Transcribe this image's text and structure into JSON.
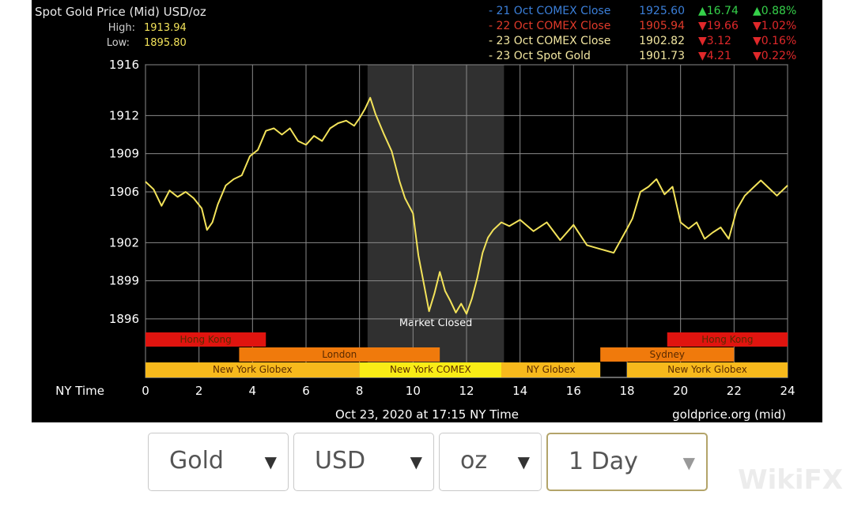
{
  "header": {
    "title": "Spot Gold Price (Mid) USD/oz",
    "high_label": "High:",
    "high_value": "1913.94",
    "low_label": "Low:",
    "low_value": "1895.80"
  },
  "quotes": [
    {
      "label": "- 21 Oct COMEX Close",
      "price": "1925.60",
      "change": "16.74",
      "pct": "0.88%",
      "up": true,
      "color": "#3b7fd9"
    },
    {
      "label": "- 22 Oct COMEX Close",
      "price": "1905.94",
      "change": "19.66",
      "pct": "1.02%",
      "up": false,
      "color": "#e03a2a"
    },
    {
      "label": "- 23 Oct COMEX Close",
      "price": "1902.82",
      "change": "3.12",
      "pct": "0.16%",
      "up": false,
      "color": "#f2e6a0"
    },
    {
      "label": "- 23 Oct Spot Gold",
      "price": "1901.73",
      "change": "4.21",
      "pct": "0.22%",
      "up": false,
      "color": "#f2e6a0"
    }
  ],
  "chart_data": {
    "type": "line",
    "xlabel": "NY Time",
    "xlim": [
      0,
      24
    ],
    "ylim": [
      1895,
      1916
    ],
    "x_ticks": [
      0,
      2,
      4,
      6,
      8,
      10,
      12,
      14,
      16,
      18,
      20,
      22,
      24
    ],
    "y_ticks": [
      1896,
      1899,
      1902,
      1906,
      1909,
      1912,
      1916
    ],
    "grid": true,
    "line_color": "#f3e35a",
    "closed_region": {
      "start": 8.3,
      "end": 13.4,
      "label": "Market Closed"
    },
    "series": [
      {
        "x": [
          0,
          0.3,
          0.6,
          0.9,
          1.2,
          1.5,
          1.8,
          2.1,
          2.3,
          2.5,
          2.7,
          3.0,
          3.3,
          3.6,
          3.9,
          4.2,
          4.5,
          4.8,
          5.1,
          5.4,
          5.7,
          6.0,
          6.3,
          6.6,
          6.9,
          7.2,
          7.5,
          7.8,
          8.0,
          8.2,
          8.4,
          8.6,
          8.9,
          9.2,
          9.5,
          9.7,
          10.0,
          10.2,
          10.4,
          10.6,
          10.8,
          11.0,
          11.2,
          11.4,
          11.6,
          11.8,
          12.0,
          12.2,
          12.4,
          12.6,
          12.8,
          13.0,
          13.3,
          13.6,
          14.0,
          14.5,
          15.0,
          15.5,
          16.0,
          16.5,
          17.0,
          17.5,
          18.0,
          18.2,
          18.5,
          18.8,
          19.1,
          19.4,
          19.7,
          20.0,
          20.3,
          20.6,
          20.9,
          21.2,
          21.5,
          21.8,
          22.1,
          22.4,
          22.7,
          23.0,
          23.3,
          23.6,
          24.0
        ],
        "y": [
          1906.8,
          1906.2,
          1904.9,
          1906.1,
          1905.6,
          1906.0,
          1905.5,
          1904.7,
          1903.0,
          1903.6,
          1905.0,
          1906.5,
          1907.0,
          1907.3,
          1908.8,
          1909.3,
          1910.8,
          1911.0,
          1910.5,
          1911.0,
          1910.0,
          1909.7,
          1910.4,
          1910.0,
          1911.0,
          1911.4,
          1911.6,
          1911.2,
          1911.8,
          1912.5,
          1913.4,
          1912.1,
          1910.6,
          1909.2,
          1906.8,
          1905.5,
          1904.3,
          1901.0,
          1898.8,
          1896.6,
          1898.0,
          1899.7,
          1898.2,
          1897.4,
          1896.5,
          1897.2,
          1896.4,
          1897.6,
          1899.2,
          1901.2,
          1902.4,
          1903.0,
          1903.6,
          1903.3,
          1903.8,
          1902.9,
          1903.6,
          1902.2,
          1903.4,
          1901.8,
          1901.5,
          1901.2,
          1903.1,
          1903.9,
          1906.0,
          1906.4,
          1907.0,
          1905.8,
          1906.4,
          1903.6,
          1903.1,
          1903.6,
          1902.3,
          1902.8,
          1903.2,
          1902.3,
          1904.6,
          1905.7,
          1906.3,
          1906.9,
          1906.3,
          1905.7,
          1906.5
        ]
      }
    ],
    "sessions": {
      "row1": [
        {
          "label": "Hong Kong",
          "start": 0,
          "end": 4.5,
          "color": "#e0140f"
        },
        {
          "label": "Hong Kong",
          "start": 19.5,
          "end": 24,
          "color": "#e0140f"
        }
      ],
      "row2": [
        {
          "label": "London",
          "start": 3.5,
          "end": 11.0,
          "color": "#f07a0c"
        },
        {
          "label": "Sydney",
          "start": 17.0,
          "end": 22.0,
          "color": "#f07a0c"
        }
      ],
      "row3": [
        {
          "label": "New York Globex",
          "start": 0,
          "end": 8.0,
          "color": "#f7b91c"
        },
        {
          "label": "New York COMEX",
          "start": 8.0,
          "end": 13.3,
          "color": "#f9ec16"
        },
        {
          "label": "NY Globex",
          "start": 13.3,
          "end": 17.0,
          "color": "#f7b91c"
        },
        {
          "label": "New York Globex",
          "start": 18.0,
          "end": 24,
          "color": "#f7b91c"
        }
      ]
    }
  },
  "footer": {
    "timestamp": "Oct 23, 2020 at 17:15 NY Time",
    "source": "goldprice.org (mid)"
  },
  "controls": {
    "metal": "Gold",
    "currency": "USD",
    "unit": "oz",
    "range": "1 Day",
    "arrow": "▼"
  },
  "watermark": "WikiFX"
}
